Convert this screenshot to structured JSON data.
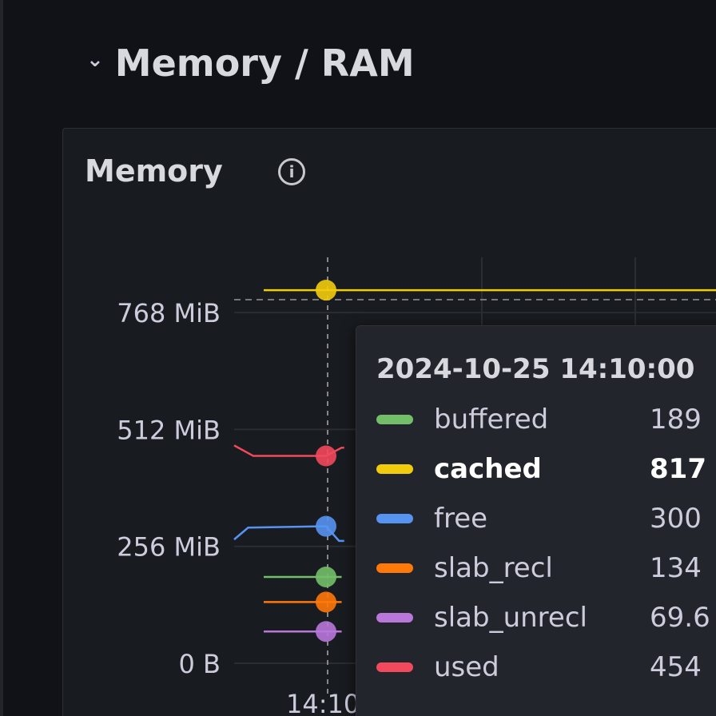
{
  "row": {
    "title": "Memory / RAM",
    "collapse_icon": "chevron-down-icon"
  },
  "panel": {
    "title": "Memory",
    "info_icon": "info-icon"
  },
  "chart_data": {
    "type": "line",
    "title": "Memory",
    "y_ticks": [
      "0 B",
      "256 MiB",
      "512 MiB",
      "768 MiB"
    ],
    "y_tick_values_mib": [
      0,
      256,
      512,
      768
    ],
    "ylim_mib": [
      0,
      900
    ],
    "x_ticks": [
      "14:10"
    ],
    "grid": true,
    "crosshair_x": "14:10:00",
    "series": [
      {
        "name": "buffered",
        "color": "#73bf69",
        "points": [
          [
            "14:08",
            189
          ],
          [
            "14:10",
            189
          ],
          [
            "14:10:30",
            189
          ]
        ]
      },
      {
        "name": "cached",
        "color": "#f2cc0c",
        "points": [
          [
            "14:08",
            817
          ],
          [
            "14:10",
            817
          ],
          [
            "14:25",
            817
          ]
        ]
      },
      {
        "name": "free",
        "color": "#5794f2",
        "points": [
          [
            "14:07",
            271
          ],
          [
            "14:07:30",
            297
          ],
          [
            "14:10",
            300
          ],
          [
            "14:10:25",
            268
          ],
          [
            "14:10:35",
            268
          ]
        ]
      },
      {
        "name": "slab_recl",
        "color": "#ff780a",
        "points": [
          [
            "14:08",
            134
          ],
          [
            "14:10",
            134
          ],
          [
            "14:10:30",
            134
          ]
        ]
      },
      {
        "name": "slab_unrecl",
        "color": "#b877d9",
        "points": [
          [
            "14:08",
            69.6
          ],
          [
            "14:10",
            69.6
          ],
          [
            "14:10:30",
            69.6
          ]
        ]
      },
      {
        "name": "used",
        "color": "#f2495c",
        "points": [
          [
            "14:07",
            477
          ],
          [
            "14:07:40",
            454
          ],
          [
            "14:10",
            454
          ],
          [
            "14:10:30",
            472
          ],
          [
            "14:10:35",
            472
          ]
        ]
      }
    ]
  },
  "tooltip": {
    "time": "2024-10-25 14:10:00",
    "rows": [
      {
        "name": "buffered",
        "value": "189",
        "color": "#73bf69"
      },
      {
        "name": "cached",
        "value": "817",
        "color": "#f2cc0c"
      },
      {
        "name": "free",
        "value": "300",
        "color": "#5794f2"
      },
      {
        "name": "slab_recl",
        "value": "134",
        "color": "#ff780a"
      },
      {
        "name": "slab_unrecl",
        "value": "69.6",
        "color": "#b877d9"
      },
      {
        "name": "used",
        "value": "454",
        "color": "#f2495c"
      }
    ]
  }
}
